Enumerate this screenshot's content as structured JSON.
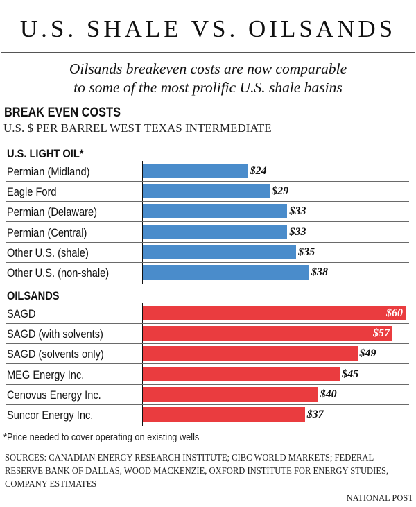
{
  "title": "U.S. SHALE VS. OILSANDS",
  "subtitle_line1": "Oilsands breakeven costs are now comparable",
  "subtitle_line2": "to some of the most prolific U.S. shale basins",
  "footnote": "*Price needed to cover operating on existing wells",
  "sources": "SOURCES: CANADIAN ENERGY RESEARCH INSTITUTE; CIBC WORLD MARKETS; FEDERAL RESERVE BANK OF DALLAS, WOOD MACKENZIE, OXFORD INSTITUTE FOR ENERGY STUDIES, COMPANY ESTIMATES",
  "credit": "NATIONAL POST",
  "colors": {
    "us_light_oil": "#4a8ccb",
    "oilsands": "#ea3c3f"
  },
  "chart_data": {
    "type": "bar",
    "orientation": "horizontal",
    "title": "BREAK EVEN COSTS",
    "subtitle": "U.S. $ PER BARREL WEST TEXAS INTERMEDIATE",
    "xlabel": "",
    "ylabel": "",
    "xlim": [
      0,
      60
    ],
    "value_prefix": "$",
    "grid": false,
    "groups": [
      {
        "name": "U.S. LIGHT OIL*",
        "color": "#4a8ccb",
        "categories": [
          "Permian (Midland)",
          "Eagle Ford",
          "Permian (Delaware)",
          "Permian (Central)",
          "Other U.S. (shale)",
          "Other U.S. (non-shale)"
        ],
        "values": [
          24,
          29,
          33,
          33,
          35,
          38
        ],
        "labels": [
          "$24",
          "$29",
          "$33",
          "$33",
          "$35",
          "$38"
        ]
      },
      {
        "name": "OILSANDS",
        "color": "#ea3c3f",
        "categories": [
          "SAGD",
          "SAGD (with solvents)",
          "SAGD (solvents only)",
          "MEG Energy Inc.",
          "Cenovus Energy Inc.",
          "Suncor Energy Inc."
        ],
        "values": [
          60,
          57,
          49,
          45,
          40,
          37
        ],
        "labels": [
          "$60",
          "$57",
          "$49",
          "$45",
          "$40",
          "$37"
        ]
      }
    ]
  }
}
